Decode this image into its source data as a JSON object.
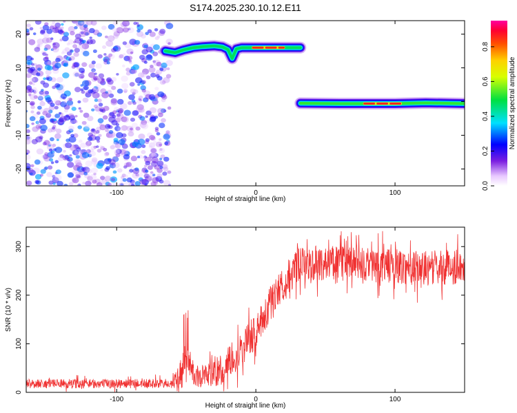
{
  "title": "S174.2025.230.10.12.E11",
  "colors": {
    "line": "#f03030",
    "scatter": "#7b1fe0",
    "axis": "#000000"
  },
  "chart_data": [
    {
      "type": "heatmap",
      "xlabel": "Height of straight line (km)",
      "ylabel": "Frequency (Hz)",
      "xlim": [
        -165,
        150
      ],
      "ylim": [
        -25,
        24
      ],
      "xticks": [
        -100,
        0,
        100
      ],
      "yticks": [
        -20,
        -10,
        0,
        10,
        20
      ],
      "colorbar": {
        "label": "Normalized spectral amplitude",
        "range": [
          0.0,
          0.95
        ],
        "ticks": [
          0.0,
          0.2,
          0.4,
          0.6,
          0.8
        ],
        "tick_labels": [
          "0.0",
          "0.2",
          "0.4",
          "0.6",
          "0.8"
        ]
      },
      "noise_region": {
        "x": [
          -165,
          -62
        ],
        "y": [
          -25,
          24
        ],
        "amplitude": [
          0.0,
          0.3
        ]
      },
      "tracks": [
        {
          "x": [
            -65,
            -58,
            -52,
            -45,
            -38,
            -30,
            -24,
            -20,
            -17,
            -14,
            -10,
            -5,
            0,
            10,
            20,
            32
          ],
          "y": [
            15.0,
            14.5,
            15.3,
            16.0,
            16.3,
            16.5,
            16.2,
            15.4,
            12.8,
            15.6,
            16.0,
            16.0,
            16.0,
            16.0,
            16.0,
            16.0
          ],
          "amplitude": 0.45
        },
        {
          "x": [
            -2,
            5,
            10,
            15,
            20
          ],
          "y": [
            16,
            16,
            16,
            16,
            16
          ],
          "amplitude": 0.9
        },
        {
          "x": [
            32,
            60,
            85,
            100,
            122,
            150
          ],
          "y": [
            -0.5,
            -0.6,
            -0.6,
            -0.6,
            -0.4,
            -0.6
          ],
          "amplitude": 0.5
        },
        {
          "x": [
            78,
            88,
            98,
            104
          ],
          "y": [
            -0.6,
            -0.6,
            -0.6,
            -0.6
          ],
          "amplitude": 0.9
        }
      ]
    },
    {
      "type": "line",
      "xlabel": "Height of straight line (km)",
      "ylabel": "SNR (10 * v/v)",
      "xlim": [
        -165,
        150
      ],
      "ylim": [
        0,
        340
      ],
      "xticks": [
        -100,
        0,
        100
      ],
      "yticks": [
        0,
        100,
        200,
        300
      ],
      "series": [
        {
          "name": "SNR",
          "x": [
            -165,
            -60,
            -55,
            -52,
            -50,
            -45,
            -40,
            -35,
            -30,
            -25,
            -20,
            -15,
            -10,
            -5,
            0,
            5,
            10,
            15,
            20,
            25,
            30,
            40,
            60,
            80,
            100,
            120,
            140,
            150
          ],
          "baseline": [
            18,
            18,
            25,
            60,
            80,
            40,
            30,
            40,
            35,
            45,
            60,
            75,
            90,
            110,
            125,
            150,
            180,
            210,
            220,
            240,
            260,
            265,
            268,
            262,
            260,
            255,
            258,
            260
          ],
          "noise_amplitude": [
            12,
            12,
            40,
            60,
            40,
            30,
            30,
            35,
            35,
            40,
            40,
            45,
            45,
            45,
            45,
            45,
            45,
            45,
            45,
            45,
            45,
            45,
            45,
            45,
            45,
            45,
            45,
            45
          ]
        }
      ]
    }
  ]
}
